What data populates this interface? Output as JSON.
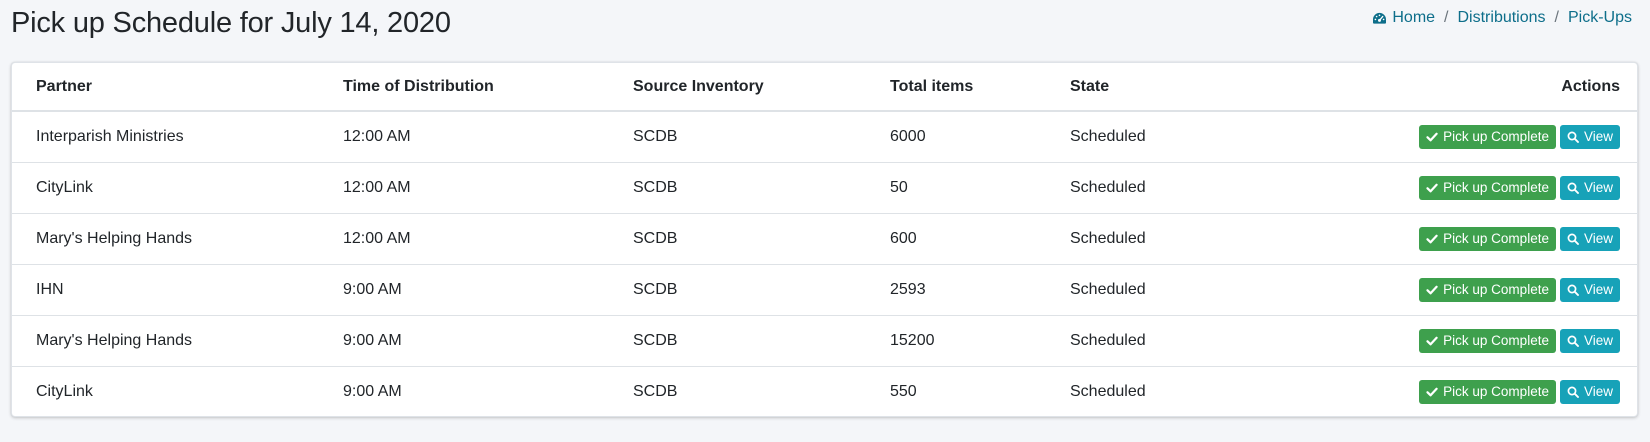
{
  "page": {
    "title": "Pick up Schedule for July 14, 2020"
  },
  "breadcrumb": {
    "home": "Home",
    "distributions": "Distributions",
    "current": "Pick-Ups",
    "separator": "/"
  },
  "table": {
    "headers": {
      "partner": "Partner",
      "time": "Time of Distribution",
      "source": "Source Inventory",
      "total": "Total items",
      "state": "State",
      "actions": "Actions"
    },
    "rows": [
      {
        "partner": "Interparish Ministries",
        "time": "12:00 AM",
        "source": "SCDB",
        "total": "6000",
        "state": "Scheduled"
      },
      {
        "partner": "CityLink",
        "time": "12:00 AM",
        "source": "SCDB",
        "total": "50",
        "state": "Scheduled"
      },
      {
        "partner": "Mary's Helping Hands",
        "time": "12:00 AM",
        "source": "SCDB",
        "total": "600",
        "state": "Scheduled"
      },
      {
        "partner": "IHN",
        "time": "9:00 AM",
        "source": "SCDB",
        "total": "2593",
        "state": "Scheduled"
      },
      {
        "partner": "Mary's Helping Hands",
        "time": "9:00 AM",
        "source": "SCDB",
        "total": "15200",
        "state": "Scheduled"
      },
      {
        "partner": "CityLink",
        "time": "9:00 AM",
        "source": "SCDB",
        "total": "550",
        "state": "Scheduled"
      }
    ]
  },
  "actions": {
    "complete_label": "Pick up Complete",
    "view_label": "View"
  },
  "icons": {
    "home": "dashboard-icon",
    "complete": "check-icon",
    "view": "search-icon"
  },
  "colors": {
    "link": "#0d6e8a",
    "success": "#3ea04d",
    "info": "#17a2b8"
  }
}
